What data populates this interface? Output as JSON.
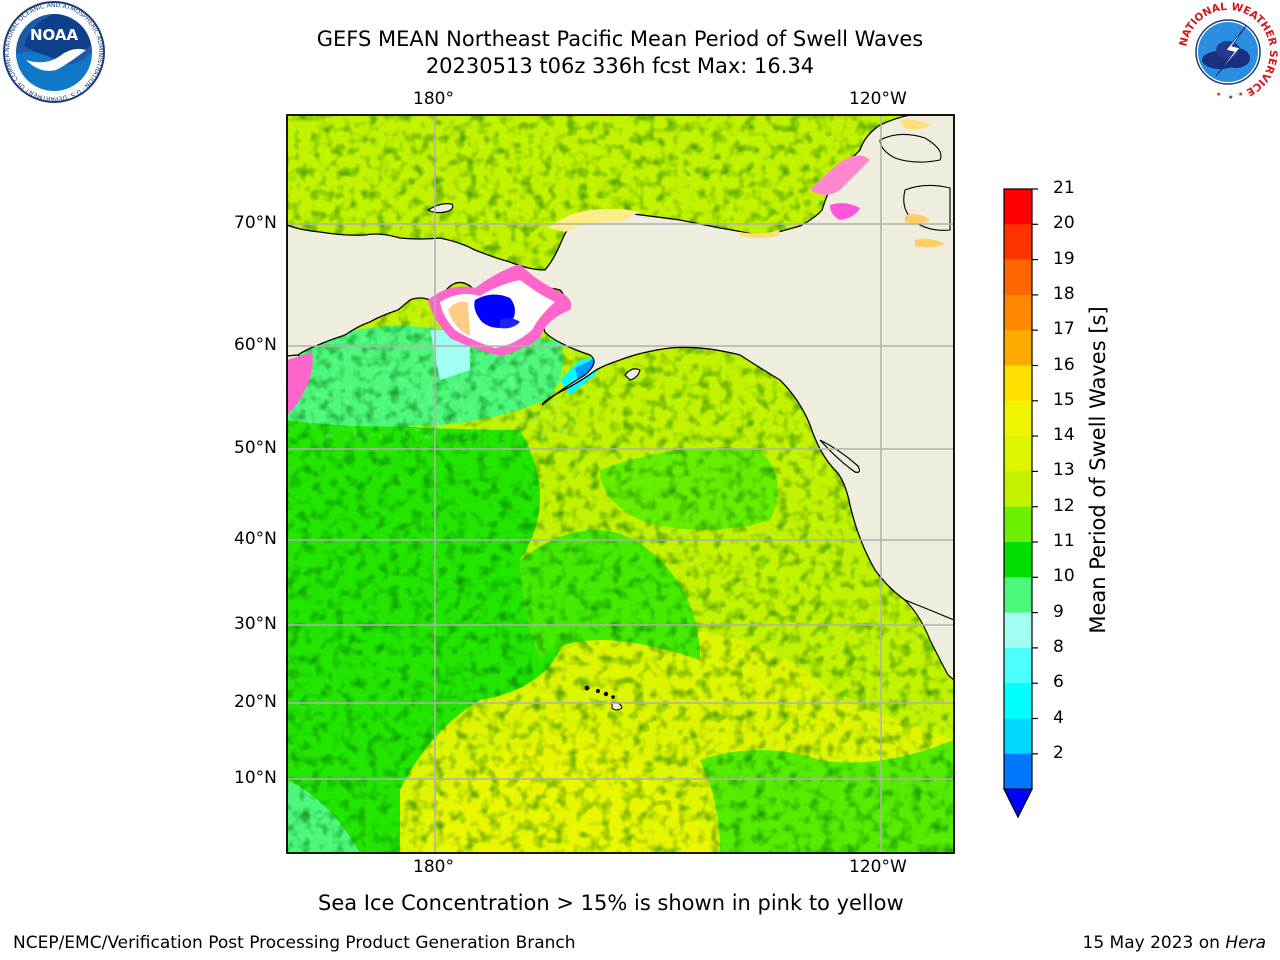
{
  "header": {
    "title_line1": "GEFS MEAN Northeast Pacific Mean Period of Swell Waves",
    "title_line2": "20230513 t06z 336h fcst   Max: 16.34"
  },
  "map": {
    "lon_labels_top": [
      "180°",
      "120°W"
    ],
    "lon_labels_bottom": [
      "180°",
      "120°W"
    ],
    "lat_labels": [
      "70°N",
      "60°N",
      "50°N",
      "40°N",
      "30°N",
      "20°N",
      "10°N"
    ],
    "land_color": "#efedde",
    "grid_color": "#b0b0b0"
  },
  "colorbar": {
    "title": "Mean Period of Swell Waves [s]",
    "ticks": [
      "21",
      "20",
      "19",
      "18",
      "17",
      "16",
      "15",
      "14",
      "13",
      "12",
      "11",
      "10",
      "9",
      "8",
      "6",
      "4",
      "2"
    ],
    "colors": [
      "#ff0000",
      "#ff3300",
      "#ff6600",
      "#ff8800",
      "#ffaa00",
      "#ffe000",
      "#f0f500",
      "#ddf500",
      "#c2f200",
      "#6af000",
      "#00e000",
      "#4cf77c",
      "#a0fff0",
      "#4dffff",
      "#00ffff",
      "#00d8ff",
      "#0077ff"
    ],
    "extend_color": "#0000ff"
  },
  "caption": "Sea Ice Concentration > 15% is shown in pink to yellow",
  "footer": {
    "left": "NCEP/EMC/Verification Post Processing Product Generation Branch",
    "right_prefix": "15 May 2023 on ",
    "right_machine": "Hera"
  },
  "logos": {
    "noaa": "NOAA",
    "noaa_ring": "NATIONAL OCEANIC AND ATMOSPHERIC ADMINISTRATION · U.S. DEPARTMENT OF COMMERCE",
    "nws_ring": "NATIONAL WEATHER SERVICE"
  }
}
